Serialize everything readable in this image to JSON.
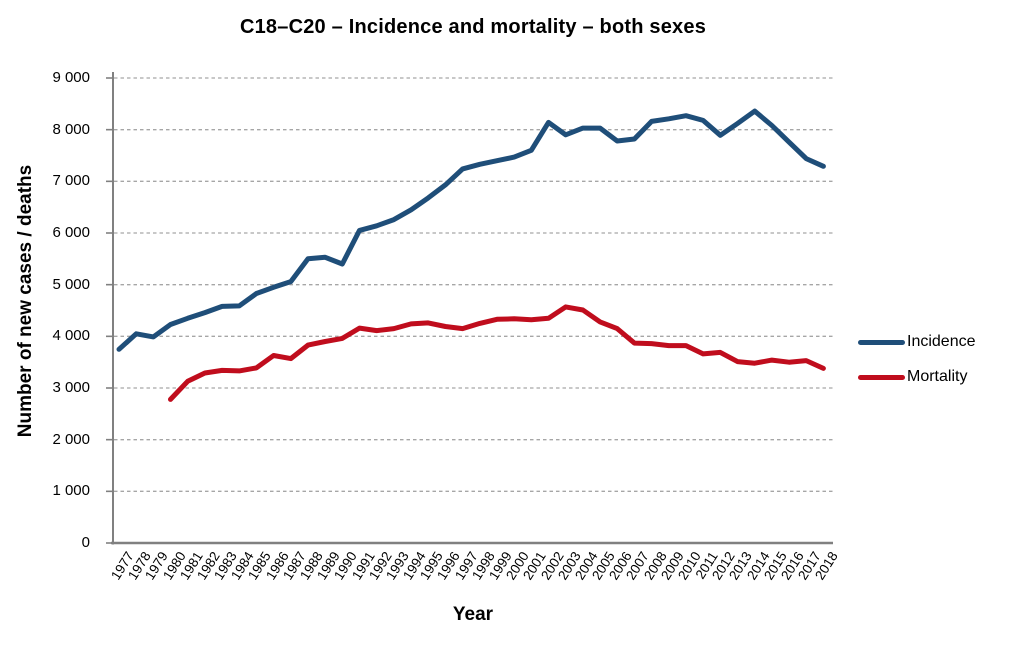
{
  "title": "C18–C20 – Incidence and mortality – both sexes",
  "colors": {
    "incidence": "#1F4E79",
    "mortality": "#C00D1D",
    "axis": "#808080",
    "grid": "#A6A6A6",
    "text": "#000000"
  },
  "chart_data": {
    "type": "line",
    "title": "C18–C20 – Incidence and mortality – both sexes",
    "xlabel": "Year",
    "ylabel": "Number of new cases / deaths",
    "ylim": [
      0,
      9000
    ],
    "ytick_step": 1000,
    "grid": "horizontal-dashed",
    "legend_position": "right",
    "x": [
      1977,
      1978,
      1979,
      1980,
      1981,
      1982,
      1983,
      1984,
      1985,
      1986,
      1987,
      1988,
      1989,
      1990,
      1991,
      1992,
      1993,
      1994,
      1995,
      1996,
      1997,
      1998,
      1999,
      2000,
      2001,
      2002,
      2003,
      2004,
      2005,
      2006,
      2007,
      2008,
      2009,
      2010,
      2011,
      2012,
      2013,
      2014,
      2015,
      2016,
      2017,
      2018
    ],
    "y_tick_values": [
      0,
      1000,
      2000,
      3000,
      4000,
      5000,
      6000,
      7000,
      8000,
      9000
    ],
    "y_tick_labels": [
      "0",
      "1 000",
      "2 000",
      "3 000",
      "4 000",
      "5 000",
      "6 000",
      "7 000",
      "8 000",
      "9 000"
    ],
    "series": [
      {
        "name": "Incidence",
        "color": "#1F4E79",
        "values": [
          3750,
          4050,
          3990,
          4230,
          4350,
          4460,
          4580,
          4590,
          4830,
          4950,
          5060,
          5500,
          5530,
          5400,
          6050,
          6140,
          6260,
          6450,
          6680,
          6930,
          7240,
          7330,
          7400,
          7470,
          7600,
          8140,
          7900,
          8030,
          8030,
          7780,
          7820,
          8160,
          8210,
          8270,
          8180,
          7890,
          8120,
          8360,
          8080,
          7760,
          7440,
          7290
        ]
      },
      {
        "name": "Mortality",
        "color": "#C00D1D",
        "values": [
          null,
          null,
          null,
          2780,
          3130,
          3290,
          3340,
          3330,
          3390,
          3630,
          3570,
          3830,
          3900,
          3960,
          4160,
          4110,
          4150,
          4240,
          4260,
          4190,
          4150,
          4250,
          4330,
          4340,
          4320,
          4350,
          4570,
          4510,
          4280,
          4150,
          3870,
          3860,
          3820,
          3820,
          3660,
          3690,
          3510,
          3480,
          3540,
          3500,
          3530,
          3380
        ]
      }
    ]
  }
}
